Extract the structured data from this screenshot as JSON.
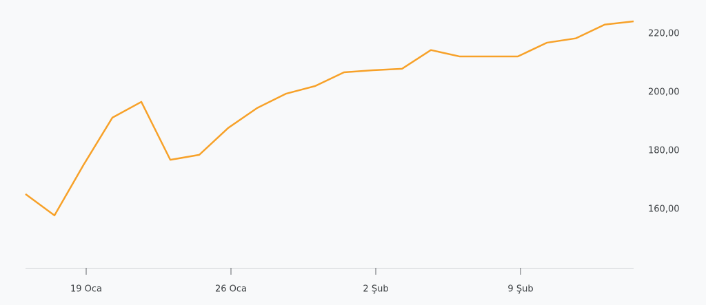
{
  "chart_data": {
    "type": "line",
    "categories": [
      null,
      null,
      "19 Oca",
      null,
      null,
      null,
      null,
      "26 Oca",
      null,
      null,
      null,
      null,
      "2 Şub",
      null,
      null,
      null,
      null,
      "9 Şub",
      null,
      null,
      null,
      null
    ],
    "series": [
      {
        "color": "#f7a128",
        "values": [
          165.2,
          157.9,
          175.1,
          191.3,
          196.7,
          176.9,
          178.6,
          187.8,
          194.6,
          199.5,
          202.1,
          206.8,
          207.5,
          208.0,
          214.4,
          212.2,
          212.2,
          212.2,
          216.9,
          218.4,
          223.1,
          224.2
        ]
      }
    ],
    "ylim": [
      140,
      231.5
    ],
    "yticks": [
      {
        "value": 160,
        "label": "160,00"
      },
      {
        "value": 180,
        "label": "180,00"
      },
      {
        "value": 200,
        "label": "200,00"
      },
      {
        "value": 220,
        "label": "220,00"
      }
    ]
  }
}
